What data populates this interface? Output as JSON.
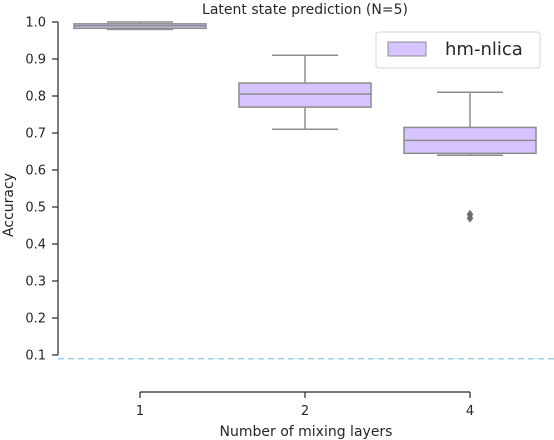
{
  "chart_data": {
    "type": "box",
    "title": "Latent state prediction (N=5)",
    "xlabel": "Number of mixing layers",
    "ylabel": "Accuracy",
    "categories": [
      "1",
      "2",
      "4"
    ],
    "series": [
      {
        "name": "hm-nlica",
        "color": "#d5c4ff",
        "edge_color": "#8c8c8c",
        "boxes": [
          {
            "category": "1",
            "whisker_low": 0.98,
            "q1": 0.983,
            "median": 0.99,
            "q3": 0.995,
            "whisker_high": 1.0,
            "outliers": []
          },
          {
            "category": "2",
            "whisker_low": 0.71,
            "q1": 0.77,
            "median": 0.805,
            "q3": 0.835,
            "whisker_high": 0.91,
            "outliers": []
          },
          {
            "category": "4",
            "whisker_low": 0.64,
            "q1": 0.645,
            "median": 0.68,
            "q3": 0.715,
            "whisker_high": 0.81,
            "outliers": [
              0.47,
              0.48
            ]
          }
        ]
      }
    ],
    "reference_line": {
      "y": 0.09,
      "color": "#9ccfe8",
      "style": "dashed"
    },
    "yticks": [
      "0.1",
      "0.2",
      "0.3",
      "0.4",
      "0.5",
      "0.6",
      "0.7",
      "0.8",
      "0.9",
      "1.0"
    ],
    "ytick_values": [
      0.1,
      0.2,
      0.3,
      0.4,
      0.5,
      0.6,
      0.7,
      0.8,
      0.9,
      1.0
    ],
    "ylim": [
      0.1,
      1.0
    ],
    "grid": false,
    "legend_position": "top-right"
  }
}
